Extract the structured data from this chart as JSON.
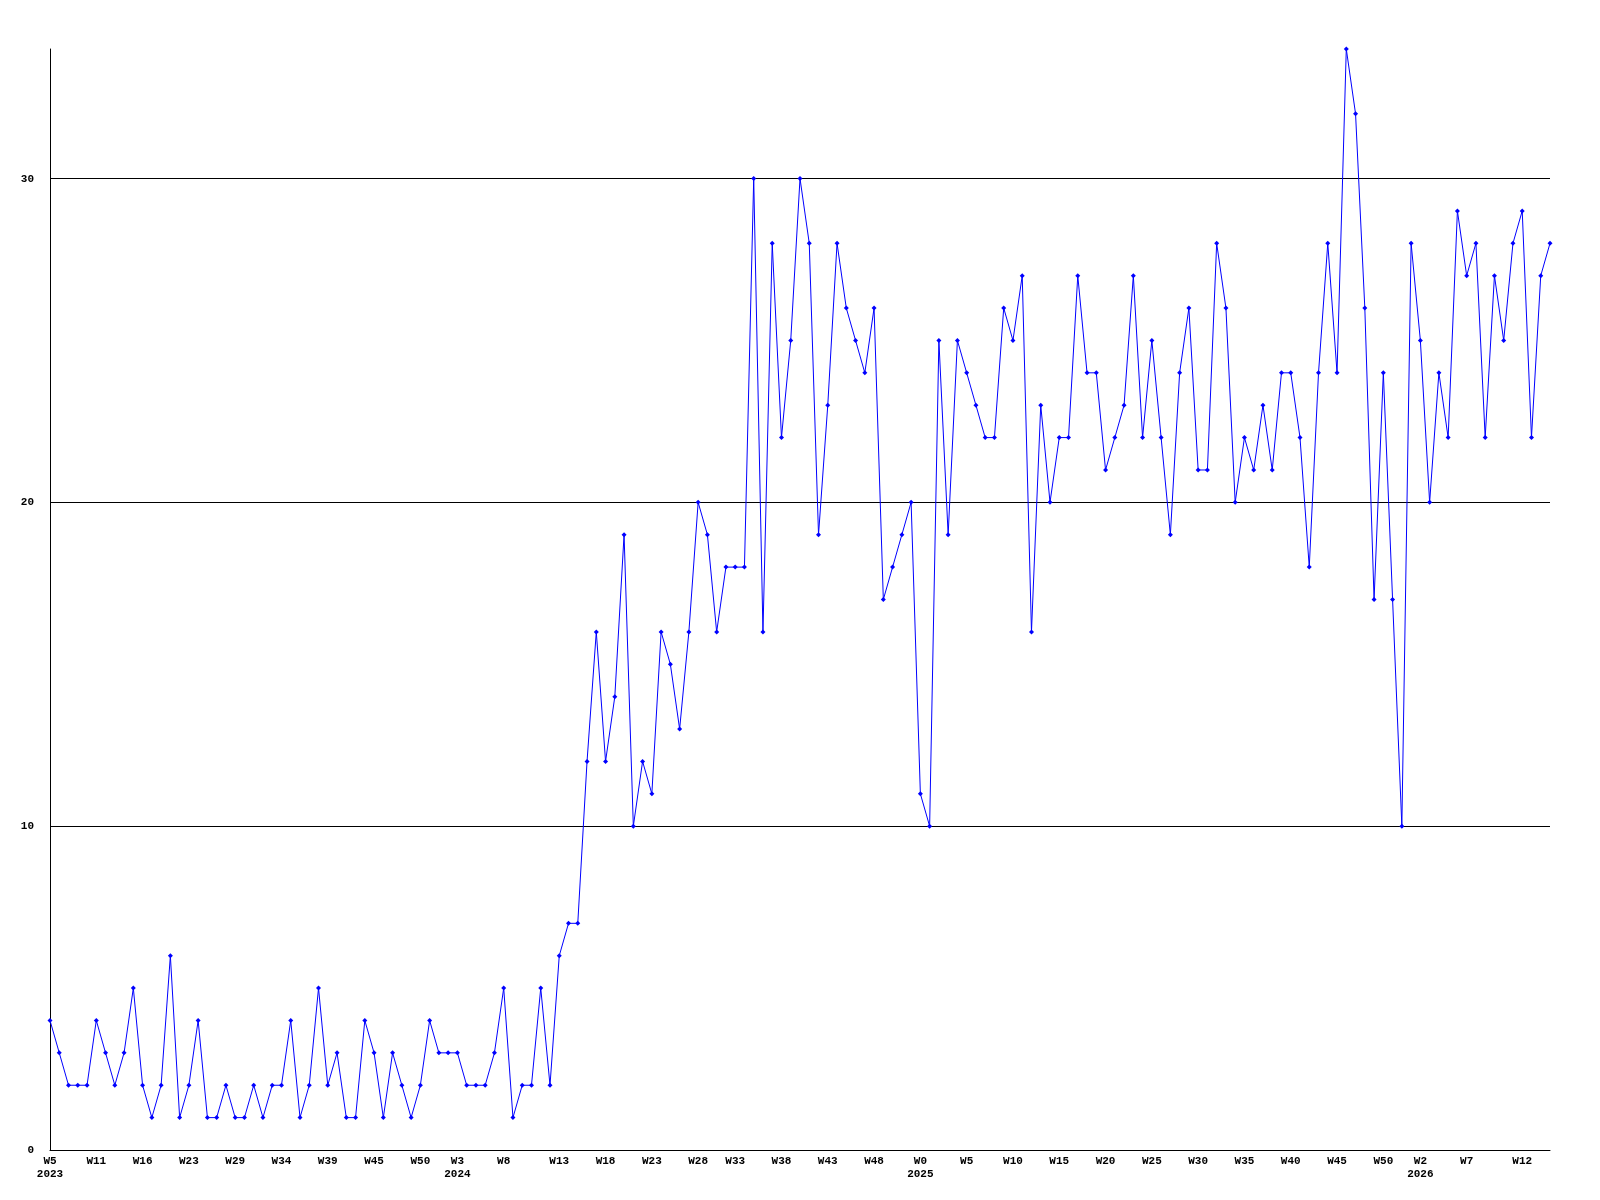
{
  "chart_data": {
    "type": "line",
    "categories": [
      "W5\n2023",
      null,
      null,
      null,
      null,
      "W11",
      null,
      null,
      null,
      null,
      "W16",
      null,
      null,
      null,
      null,
      "W23",
      null,
      null,
      null,
      null,
      "W29",
      null,
      null,
      null,
      null,
      "W34",
      null,
      null,
      null,
      null,
      "W39",
      null,
      null,
      null,
      null,
      "W45",
      null,
      null,
      null,
      null,
      "W50",
      null,
      null,
      null,
      "W3\n2024",
      null,
      null,
      null,
      null,
      "W8",
      null,
      null,
      null,
      null,
      null,
      "W13",
      null,
      null,
      null,
      null,
      "W18",
      null,
      null,
      null,
      null,
      "W23",
      null,
      null,
      null,
      null,
      "W28",
      null,
      null,
      null,
      "W33",
      null,
      null,
      null,
      null,
      "W38",
      null,
      null,
      null,
      null,
      "W43",
      null,
      null,
      null,
      null,
      "W48",
      null,
      null,
      null,
      null,
      "W0\n2025",
      null,
      null,
      null,
      null,
      "W5",
      null,
      null,
      null,
      null,
      "W10",
      null,
      null,
      null,
      null,
      "W15",
      null,
      null,
      null,
      null,
      "W20",
      null,
      null,
      null,
      null,
      "W25",
      null,
      null,
      null,
      null,
      "W30",
      null,
      null,
      null,
      null,
      "W35",
      null,
      null,
      null,
      null,
      "W40",
      null,
      null,
      null,
      null,
      "W45",
      null,
      null,
      null,
      null,
      "W50",
      null,
      null,
      null,
      "W2\n2026",
      null,
      null,
      null,
      null,
      "W7",
      null,
      null,
      null,
      null,
      null,
      "W12",
      null,
      null,
      null
    ],
    "values": [
      4,
      3,
      2,
      2,
      2,
      4,
      3,
      2,
      3,
      5,
      2,
      1,
      2,
      6,
      1,
      2,
      4,
      1,
      1,
      2,
      1,
      1,
      2,
      1,
      2,
      2,
      4,
      1,
      2,
      5,
      2,
      3,
      1,
      1,
      4,
      3,
      1,
      3,
      2,
      1,
      2,
      4,
      3,
      3,
      3,
      2,
      2,
      2,
      3,
      5,
      1,
      2,
      2,
      5,
      2,
      6,
      7,
      7,
      12,
      16,
      12,
      14,
      19,
      10,
      12,
      11,
      16,
      15,
      13,
      16,
      20,
      19,
      16,
      18,
      18,
      18,
      30,
      16,
      28,
      22,
      25,
      30,
      28,
      19,
      23,
      28,
      26,
      25,
      24,
      26,
      17,
      18,
      19,
      20,
      11,
      10,
      25,
      19,
      25,
      24,
      23,
      22,
      22,
      26,
      25,
      27,
      16,
      23,
      20,
      22,
      22,
      27,
      24,
      24,
      21,
      22,
      23,
      27,
      22,
      25,
      22,
      19,
      24,
      26,
      21,
      21,
      28,
      26,
      20,
      22,
      21,
      23,
      21,
      24,
      24,
      22,
      18,
      24,
      28,
      24,
      34,
      32,
      26,
      17,
      24,
      17,
      10,
      28,
      25,
      20,
      24,
      22,
      29,
      27,
      28,
      22,
      27,
      25,
      28,
      29,
      22,
      27,
      28
    ],
    "color": "#0000ff",
    "ylim": [
      0,
      34
    ],
    "yticks": [
      0,
      10,
      20,
      30
    ],
    "grid": "y",
    "marker": "diamond",
    "line_style": "solid"
  }
}
